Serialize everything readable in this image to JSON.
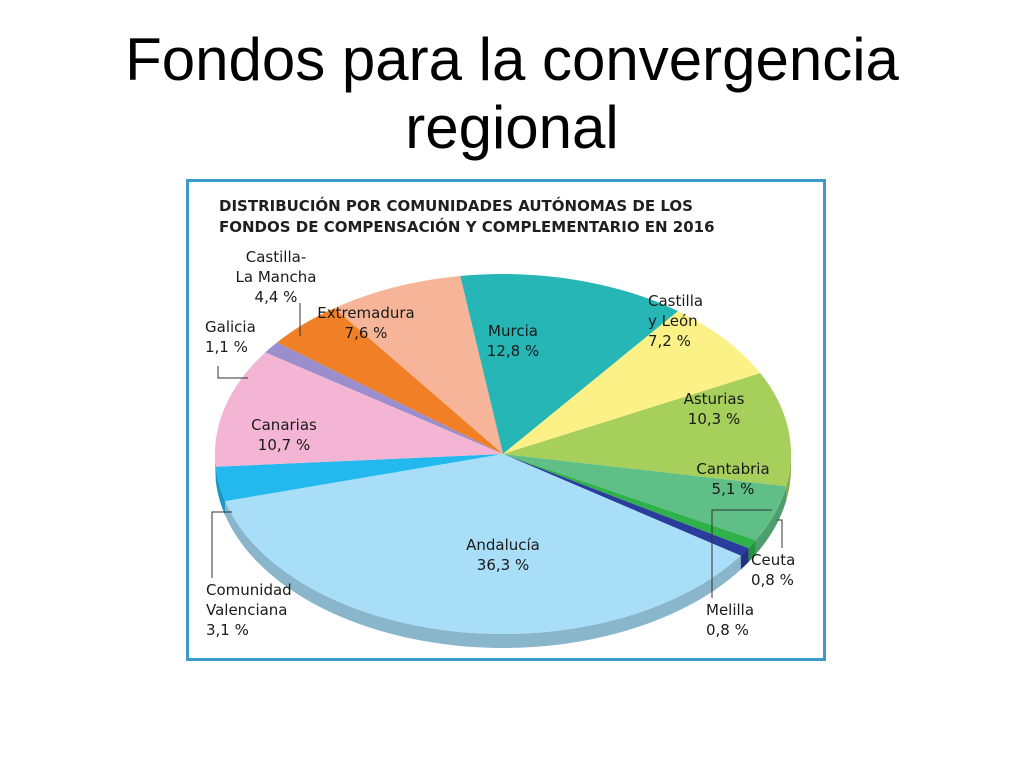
{
  "slide": {
    "title_line1": "Fondos para la convergencia",
    "title_line2": "regional"
  },
  "chart_data": {
    "type": "pie",
    "title_line1": "DISTRIBUCIÓN POR COMUNIDADES AUTÓNOMAS DE LOS",
    "title_line2": "FONDOS DE COMPENSACIÓN Y COMPLEMENTARIO EN 2016",
    "unit": "%",
    "slices": [
      {
        "name": "Murcia",
        "label_lines": [
          "Murcia"
        ],
        "value": 12.8,
        "value_label": "12,8 %",
        "color": "#27b6b6"
      },
      {
        "name": "Castilla y León",
        "label_lines": [
          "Castilla",
          "y León"
        ],
        "value": 7.2,
        "value_label": "7,2 %",
        "color": "#fbf187"
      },
      {
        "name": "Asturias",
        "label_lines": [
          "Asturias"
        ],
        "value": 10.3,
        "value_label": "10,3 %",
        "color": "#a6cf5c"
      },
      {
        "name": "Cantabria",
        "label_lines": [
          "Cantabria"
        ],
        "value": 5.1,
        "value_label": "5,1 %",
        "color": "#5fbf86"
      },
      {
        "name": "Ceuta",
        "label_lines": [
          "Ceuta"
        ],
        "value": 0.8,
        "value_label": "0,8 %",
        "color": "#2fb24a"
      },
      {
        "name": "Melilla",
        "label_lines": [
          "Melilla"
        ],
        "value": 0.8,
        "value_label": "0,8 %",
        "color": "#2b3d9c"
      },
      {
        "name": "Andalucía",
        "label_lines": [
          "Andalucía"
        ],
        "value": 36.3,
        "value_label": "36,3 %",
        "color": "#a8def7"
      },
      {
        "name": "Comunidad Valenciana",
        "label_lines": [
          "Comunidad",
          "Valenciana"
        ],
        "value": 3.1,
        "value_label": "3,1 %",
        "color": "#23b9ee"
      },
      {
        "name": "Canarias",
        "label_lines": [
          "Canarias"
        ],
        "value": 10.7,
        "value_label": "10,7 %",
        "color": "#f4b5d4"
      },
      {
        "name": "Galicia",
        "label_lines": [
          "Galicia"
        ],
        "value": 1.1,
        "value_label": "1,1 %",
        "color": "#9a8fcc"
      },
      {
        "name": "Castilla-La Mancha",
        "label_lines": [
          "Castilla-",
          "La Mancha"
        ],
        "value": 4.4,
        "value_label": "4,4 %",
        "color": "#f07f26"
      },
      {
        "name": "Extremadura",
        "label_lines": [
          "Extremadura"
        ],
        "value": 7.6,
        "value_label": "7,6 %",
        "color": "#f6b598"
      }
    ]
  }
}
